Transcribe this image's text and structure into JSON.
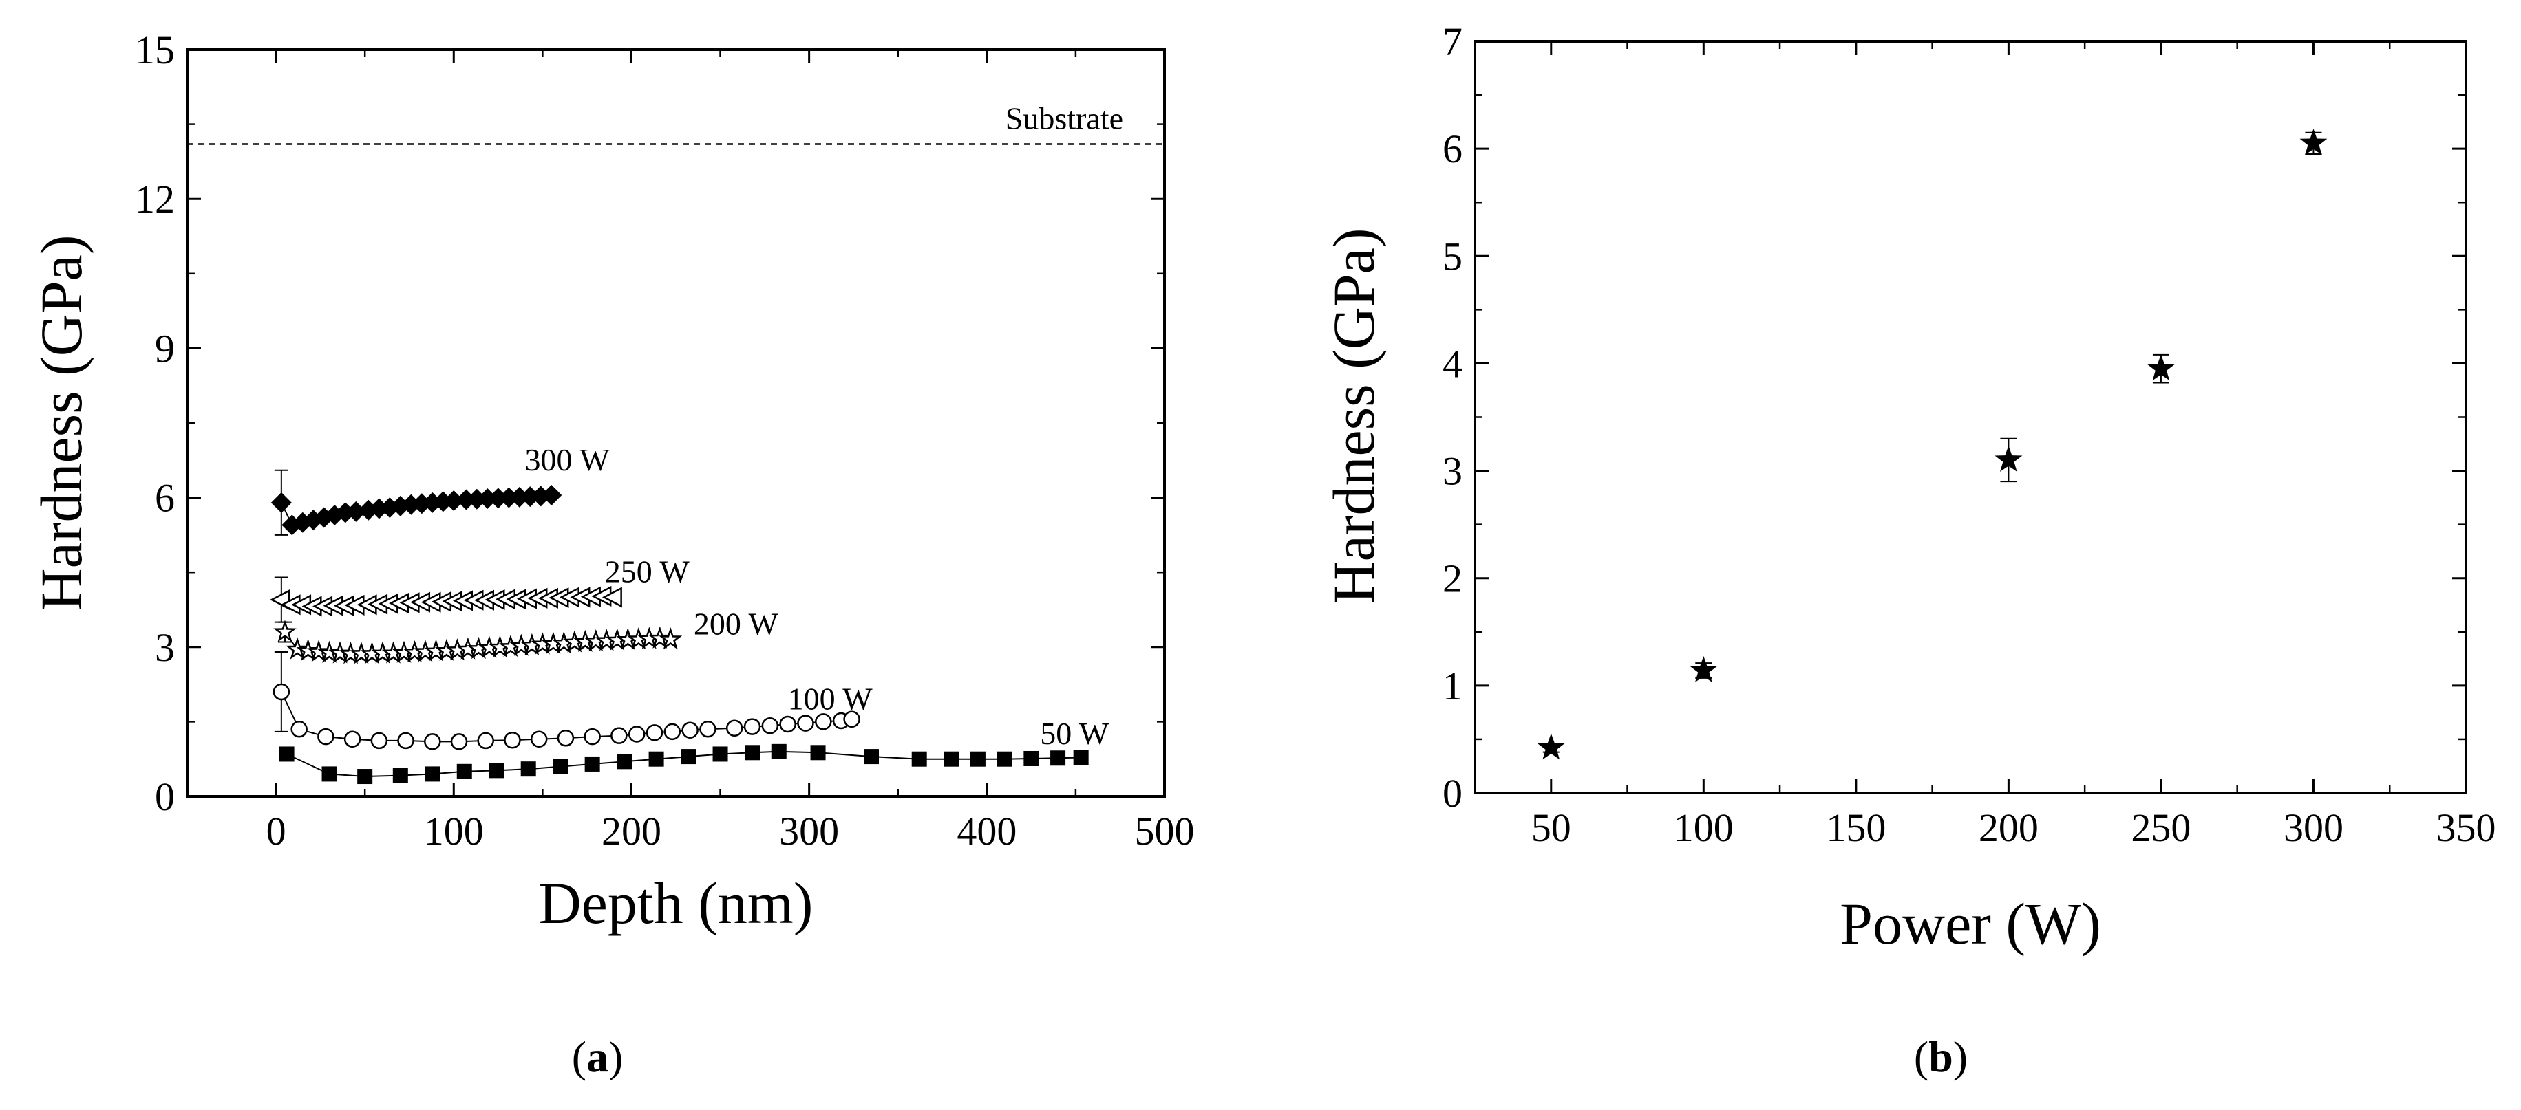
{
  "chart_data": [
    {
      "type": "scatter",
      "panel": "(a)",
      "panel_letter": "a",
      "xlabel": "Depth (nm)",
      "ylabel": "Hardness (GPa)",
      "xlim": [
        -50,
        500
      ],
      "ylim": [
        0,
        15
      ],
      "xticks": [
        0,
        100,
        200,
        300,
        400,
        500
      ],
      "yticks": [
        0,
        3,
        6,
        9,
        12,
        15
      ],
      "reference_line": {
        "label": "Substrate",
        "y": 13.1,
        "style": "dashed"
      },
      "series": [
        {
          "name": "300 W",
          "marker": "diamond-filled",
          "label_anchor": [
            140,
            6.55
          ],
          "first_point": {
            "x": 3,
            "y": 5.9,
            "err": 0.65
          },
          "x": [
            3,
            9,
            15,
            21,
            27,
            33,
            39,
            45,
            52,
            58,
            64,
            70,
            76,
            82,
            88,
            94,
            100,
            107,
            113,
            119,
            125,
            131,
            137,
            143,
            149,
            155
          ],
          "y": [
            5.9,
            5.45,
            5.5,
            5.55,
            5.6,
            5.65,
            5.7,
            5.72,
            5.75,
            5.78,
            5.8,
            5.83,
            5.86,
            5.88,
            5.9,
            5.92,
            5.94,
            5.96,
            5.97,
            5.98,
            5.99,
            6.0,
            6.01,
            6.02,
            6.03,
            6.05
          ]
        },
        {
          "name": "250 W",
          "marker": "triangle-left-open",
          "label_anchor": [
            185,
            4.3
          ],
          "first_point": {
            "x": 3,
            "y": 3.95,
            "err": 0.45
          },
          "x": [
            3,
            9,
            15,
            21,
            27,
            33,
            39,
            45,
            52,
            58,
            64,
            70,
            76,
            82,
            88,
            94,
            100,
            106,
            112,
            118,
            124,
            130,
            136,
            142,
            148,
            154,
            160,
            166,
            172,
            178,
            184,
            190
          ],
          "y": [
            3.95,
            3.85,
            3.85,
            3.82,
            3.82,
            3.83,
            3.83,
            3.84,
            3.85,
            3.86,
            3.87,
            3.88,
            3.89,
            3.9,
            3.9,
            3.91,
            3.92,
            3.93,
            3.94,
            3.94,
            3.95,
            3.96,
            3.96,
            3.97,
            3.98,
            3.98,
            3.99,
            4.0,
            4.0,
            4.01,
            4.02,
            4.0
          ]
        },
        {
          "name": "200 W",
          "marker": "star-open",
          "label_anchor": [
            235,
            3.25
          ],
          "first_point": {
            "x": 5,
            "y": 3.3,
            "err": 0.2
          },
          "x": [
            5,
            12,
            18,
            24,
            30,
            36,
            42,
            48,
            54,
            60,
            66,
            72,
            78,
            84,
            90,
            96,
            102,
            108,
            114,
            120,
            126,
            132,
            138,
            144,
            150,
            156,
            162,
            168,
            174,
            180,
            186,
            192,
            198,
            204,
            210,
            216,
            222
          ],
          "y": [
            3.3,
            2.95,
            2.92,
            2.9,
            2.88,
            2.87,
            2.86,
            2.86,
            2.86,
            2.87,
            2.87,
            2.88,
            2.89,
            2.9,
            2.91,
            2.92,
            2.93,
            2.95,
            2.96,
            2.98,
            2.99,
            3.0,
            3.02,
            3.03,
            3.05,
            3.06,
            3.07,
            3.09,
            3.1,
            3.11,
            3.12,
            3.13,
            3.14,
            3.15,
            3.16,
            3.17,
            3.15
          ]
        },
        {
          "name": "100 W",
          "marker": "circle-open",
          "label_anchor": [
            288,
            1.75
          ],
          "first_point": {
            "x": 3,
            "y": 2.1,
            "err": 0.8
          },
          "x": [
            3,
            13,
            28,
            43,
            58,
            73,
            88,
            103,
            118,
            133,
            148,
            163,
            178,
            193,
            203,
            213,
            223,
            233,
            243,
            258,
            268,
            278,
            288,
            298,
            308,
            318,
            324
          ],
          "y": [
            2.1,
            1.35,
            1.2,
            1.15,
            1.12,
            1.12,
            1.1,
            1.1,
            1.12,
            1.13,
            1.15,
            1.17,
            1.2,
            1.22,
            1.25,
            1.28,
            1.3,
            1.33,
            1.35,
            1.37,
            1.4,
            1.42,
            1.45,
            1.47,
            1.5,
            1.52,
            1.55
          ]
        },
        {
          "name": "50 W",
          "marker": "square-filled",
          "label_anchor": [
            430,
            1.05
          ],
          "first_point": {
            "x": 6,
            "y": 0.85,
            "err": 0
          },
          "x": [
            6,
            30,
            50,
            70,
            88,
            106,
            124,
            142,
            160,
            178,
            196,
            214,
            232,
            250,
            268,
            283,
            305,
            335,
            362,
            380,
            395,
            410,
            425,
            440,
            453
          ],
          "y": [
            0.85,
            0.45,
            0.4,
            0.42,
            0.45,
            0.5,
            0.52,
            0.55,
            0.6,
            0.65,
            0.7,
            0.75,
            0.8,
            0.85,
            0.88,
            0.9,
            0.88,
            0.8,
            0.75,
            0.75,
            0.75,
            0.75,
            0.76,
            0.77,
            0.78
          ]
        }
      ]
    },
    {
      "type": "scatter",
      "panel": "(b)",
      "panel_letter": "b",
      "xlabel": "Power (W)",
      "ylabel": "Hardness (GPa)",
      "xlim": [
        25,
        350
      ],
      "ylim": [
        0,
        7
      ],
      "xticks": [
        50,
        100,
        150,
        200,
        250,
        300,
        350
      ],
      "yticks": [
        0,
        1,
        2,
        3,
        4,
        5,
        6,
        7
      ],
      "marker": "star-filled",
      "x": [
        50,
        100,
        200,
        250,
        300
      ],
      "y": [
        0.42,
        1.14,
        3.1,
        3.95,
        6.05
      ],
      "yerr": [
        0.04,
        0.07,
        0.2,
        0.13,
        0.1
      ]
    }
  ]
}
